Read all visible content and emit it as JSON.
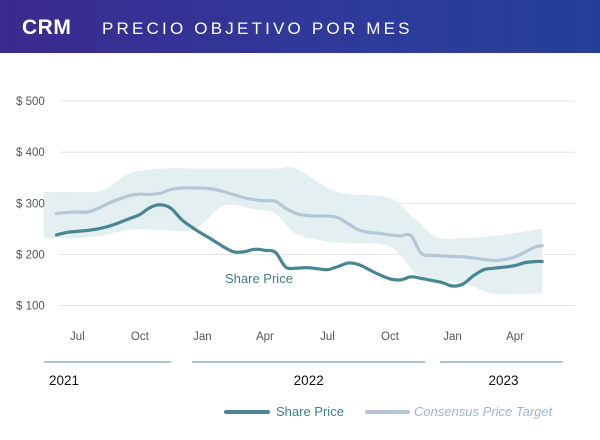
{
  "header": {
    "ticker": "CRM",
    "title": "PRECIO OBJETIVO POR MES"
  },
  "colors": {
    "share_price": "#4a8593",
    "consensus": "#b5c7d4",
    "band": "#e4eff1",
    "grid": "#e3e3e3"
  },
  "chart_data": {
    "type": "line",
    "x_unit": "months since Jun 2021 (fractional)",
    "y_ticks": [
      "$ 500",
      "$ 400",
      "$ 300",
      "$ 200",
      "$ 100"
    ],
    "y_tick_values": [
      500,
      400,
      300,
      200,
      100
    ],
    "ylim": [
      95,
      510
    ],
    "xlim": [
      -0.6,
      24.3
    ],
    "month_ticks": [
      {
        "label": "Jul",
        "x": 1
      },
      {
        "label": "Oct",
        "x": 4
      },
      {
        "label": "Jan",
        "x": 7
      },
      {
        "label": "Apr",
        "x": 10
      },
      {
        "label": "Jul",
        "x": 13
      },
      {
        "label": "Oct",
        "x": 16
      },
      {
        "label": "Jan",
        "x": 19
      },
      {
        "label": "Apr",
        "x": 22
      }
    ],
    "years": [
      {
        "label": "2021",
        "x0": -0.6,
        "x1": 5.5
      },
      {
        "label": "2022",
        "x0": 6.5,
        "x1": 17.7
      },
      {
        "label": "2023",
        "x0": 18.4,
        "x1": 24.3
      }
    ],
    "annotation": "Share Price",
    "series": [
      {
        "name": "Share Price",
        "x": [
          0,
          0.5,
          1,
          1.5,
          2,
          2.5,
          3,
          3.5,
          4,
          4.5,
          5,
          5.5,
          6,
          6.5,
          7,
          7.5,
          8,
          8.5,
          9,
          9.5,
          10,
          10.5,
          11,
          11.5,
          12,
          12.5,
          13,
          13.5,
          14,
          14.5,
          15,
          15.5,
          16,
          16.5,
          17,
          17.5,
          18,
          18.5,
          19,
          19.5,
          20,
          20.5,
          21,
          21.5,
          22,
          22.5,
          23,
          23.3
        ],
        "values": [
          238,
          243,
          245,
          247,
          250,
          255,
          262,
          270,
          278,
          292,
          297,
          290,
          268,
          253,
          240,
          228,
          215,
          205,
          205,
          210,
          208,
          204,
          175,
          173,
          174,
          172,
          170,
          176,
          183,
          180,
          170,
          160,
          152,
          150,
          156,
          153,
          149,
          145,
          138,
          142,
          158,
          170,
          173,
          175,
          178,
          184,
          186,
          186
        ]
      },
      {
        "name": "Consensus Price Target",
        "x": [
          0,
          0.5,
          1,
          1.5,
          2,
          2.5,
          3,
          3.5,
          4,
          4.5,
          5,
          5.5,
          6,
          6.5,
          7,
          7.5,
          8,
          8.5,
          9,
          9.5,
          10,
          10.5,
          11,
          11.5,
          12,
          12.5,
          13,
          13.5,
          14,
          14.5,
          15,
          15.5,
          16,
          16.5,
          17,
          17.5,
          18,
          18.5,
          19,
          19.5,
          20,
          20.5,
          21,
          21.5,
          22,
          22.5,
          23,
          23.3
        ],
        "values": [
          280,
          282,
          283,
          283,
          290,
          300,
          308,
          315,
          318,
          317,
          320,
          327,
          330,
          330,
          330,
          328,
          323,
          317,
          311,
          307,
          305,
          304,
          290,
          280,
          276,
          275,
          275,
          272,
          260,
          248,
          243,
          241,
          238,
          236,
          237,
          202,
          198,
          197,
          196,
          195,
          193,
          190,
          188,
          190,
          195,
          205,
          215,
          217
        ]
      }
    ],
    "band": {
      "x": [
        -0.6,
        1,
        2.2,
        3.5,
        5,
        6.6,
        8,
        9.5,
        10.5,
        11.5,
        13,
        14,
        16,
        17.3,
        18.3,
        19.5,
        21,
        22.5,
        23.3
      ],
      "upper": [
        322,
        322,
        325,
        358,
        368,
        368,
        368,
        368,
        368,
        368,
        330,
        318,
        310,
        265,
        233,
        232,
        236,
        245,
        250
      ],
      "lower": [
        232,
        232,
        237,
        248,
        248,
        248,
        295,
        288,
        280,
        240,
        225,
        222,
        215,
        160,
        150,
        143,
        123,
        123,
        123
      ]
    }
  }
}
